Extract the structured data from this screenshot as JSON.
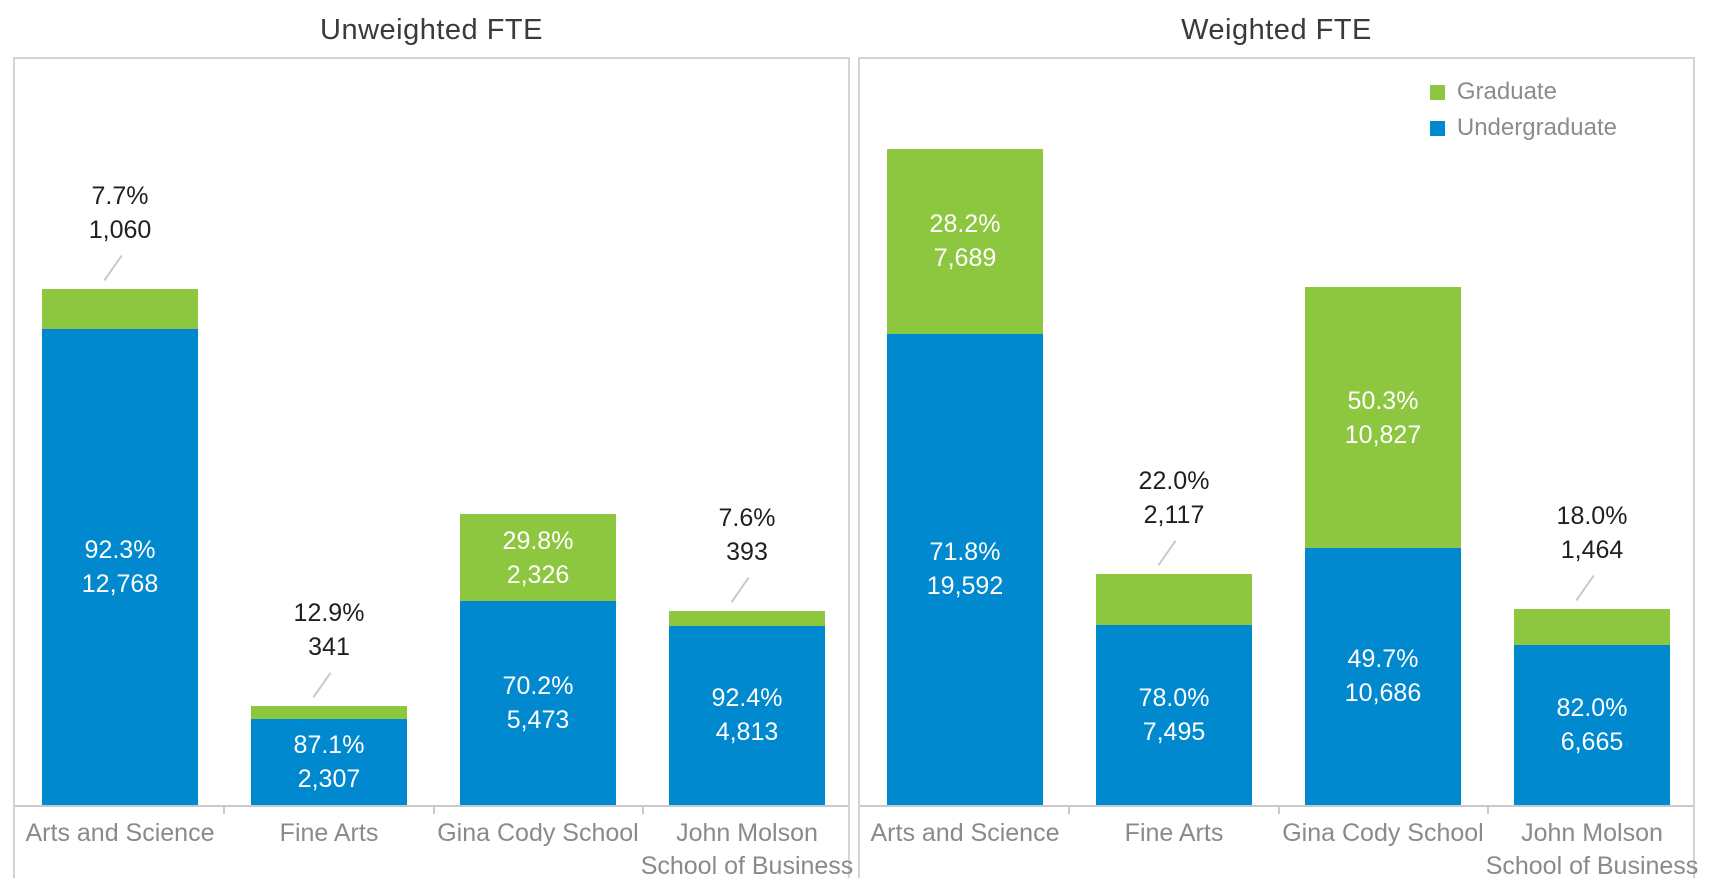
{
  "colors": {
    "graduate": "#8DC63F",
    "undergraduate": "#0089CE",
    "title_text": "#3A3A3A",
    "outside_label_text": "#1F1F1F",
    "inside_label_text": "#FFFFFF",
    "axis_label_text": "#8A8A8A",
    "legend_text": "#8C8C8C",
    "panel_border": "#D4D4D4",
    "axis_line": "#C9C9C9",
    "tick": "#C9C9C9",
    "leader_line": "#C9C9C9"
  },
  "legend": {
    "items": [
      {
        "label": "Graduate",
        "series": "Graduate"
      },
      {
        "label": "Undergraduate",
        "series": "Undergraduate"
      }
    ],
    "position": "top-right-of-second-chart"
  },
  "chart_data": [
    {
      "type": "bar",
      "stacked": true,
      "title": "Unweighted FTE",
      "categories": [
        "Arts and Science",
        "Fine Arts",
        "Gina Cody School",
        "John Molson\nSchool of Business"
      ],
      "ylim": [
        0,
        20000
      ],
      "grid": false,
      "series": [
        {
          "name": "Undergraduate",
          "color_key": "undergraduate",
          "values": [
            12768,
            2307,
            5473,
            4813
          ],
          "pct_labels": [
            "92.3%",
            "87.1%",
            "70.2%",
            "92.4%"
          ],
          "value_labels": [
            "12,768",
            "2,307",
            "5,473",
            "4,813"
          ],
          "label_placement": [
            "inside",
            "inside",
            "inside",
            "inside"
          ]
        },
        {
          "name": "Graduate",
          "color_key": "graduate",
          "values": [
            1060,
            341,
            2326,
            393
          ],
          "pct_labels": [
            "7.7%",
            "12.9%",
            "29.8%",
            "7.6%"
          ],
          "value_labels": [
            "1,060",
            "341",
            "2,326",
            "393"
          ],
          "label_placement": [
            "above",
            "above",
            "inside",
            "above"
          ]
        }
      ]
    },
    {
      "type": "bar",
      "stacked": true,
      "title": "Weighted FTE",
      "categories": [
        "Arts and Science",
        "Fine Arts",
        "Gina Cody School",
        "John Molson\nSchool of Business"
      ],
      "ylim": [
        0,
        31000
      ],
      "grid": false,
      "has_legend": true,
      "series": [
        {
          "name": "Undergraduate",
          "color_key": "undergraduate",
          "values": [
            19592,
            7495,
            10686,
            6665
          ],
          "pct_labels": [
            "71.8%",
            "78.0%",
            "49.7%",
            "82.0%"
          ],
          "value_labels": [
            "19,592",
            "7,495",
            "10,686",
            "6,665"
          ],
          "label_placement": [
            "inside",
            "inside",
            "inside",
            "inside"
          ]
        },
        {
          "name": "Graduate",
          "color_key": "graduate",
          "values": [
            7689,
            2117,
            10827,
            1464
          ],
          "pct_labels": [
            "28.2%",
            "22.0%",
            "50.3%",
            "18.0%"
          ],
          "value_labels": [
            "7,689",
            "2,117",
            "10,827",
            "1,464"
          ],
          "label_placement": [
            "inside",
            "above",
            "inside",
            "above"
          ]
        }
      ]
    }
  ]
}
